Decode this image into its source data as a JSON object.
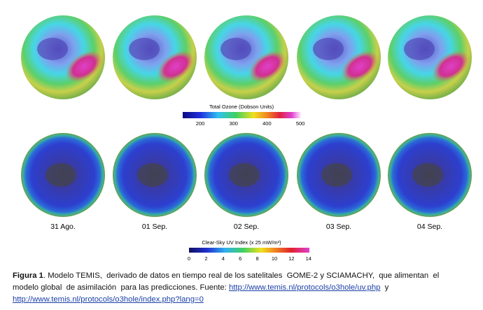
{
  "ozone_colorbar": {
    "title": "Total Ozone (Dobson Units)",
    "ticks": [
      "200",
      "300",
      "400",
      "500"
    ]
  },
  "dates": [
    "31 Ago.",
    "01 Sep.",
    "02 Sep.",
    "03 Sep.",
    "04 Sep."
  ],
  "uv_colorbar": {
    "title": "Clear-Sky UV Index (x 25 mW/m²)",
    "ticks": [
      "0",
      "2",
      "4",
      "6",
      "8",
      "10",
      "12",
      "14"
    ]
  },
  "caption": {
    "label": "Figura 1",
    "line1": ". Modelo TEMIS,  derivado de datos en tiempo real de los satelitales  GOME-2 y SCIAMACHY,  que alimentan  el",
    "line2": "modelo global  de asimilación  para las predicciones. Fuente: ",
    "link1": "http://www.temis.nl/protocols/o3hole/uv.php",
    "joiner": "  y",
    "link2": "http://www.temis.nl/protocols/o3hole/index.php?lang=0"
  }
}
